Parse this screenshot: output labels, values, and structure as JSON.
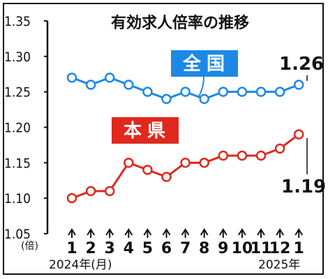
{
  "chart_data": {
    "type": "line",
    "title": "有効求人倍率の推移",
    "x": [
      "1",
      "2",
      "3",
      "4",
      "5",
      "6",
      "7",
      "8",
      "9",
      "10",
      "11",
      "12",
      "1"
    ],
    "xlabel_left": "2024年(月)",
    "xlabel_right": "2025年",
    "y_unit": "(倍)",
    "yticks": [
      "1.35",
      "1.30",
      "1.25",
      "1.20",
      "1.15",
      "1.10",
      "1.05"
    ],
    "ylim": [
      1.05,
      1.35
    ],
    "grid": false,
    "series": [
      {
        "name": "全国",
        "color": "#1e88e5",
        "values": [
          1.27,
          1.26,
          1.27,
          1.26,
          1.25,
          1.24,
          1.25,
          1.24,
          1.25,
          1.25,
          1.25,
          1.25,
          1.26
        ],
        "end_label": "1.26"
      },
      {
        "name": "本県",
        "color": "#e0281e",
        "values": [
          1.1,
          1.11,
          1.11,
          1.15,
          1.14,
          1.13,
          1.15,
          1.15,
          1.16,
          1.16,
          1.16,
          1.17,
          1.19
        ],
        "end_label": "1.19"
      }
    ]
  }
}
